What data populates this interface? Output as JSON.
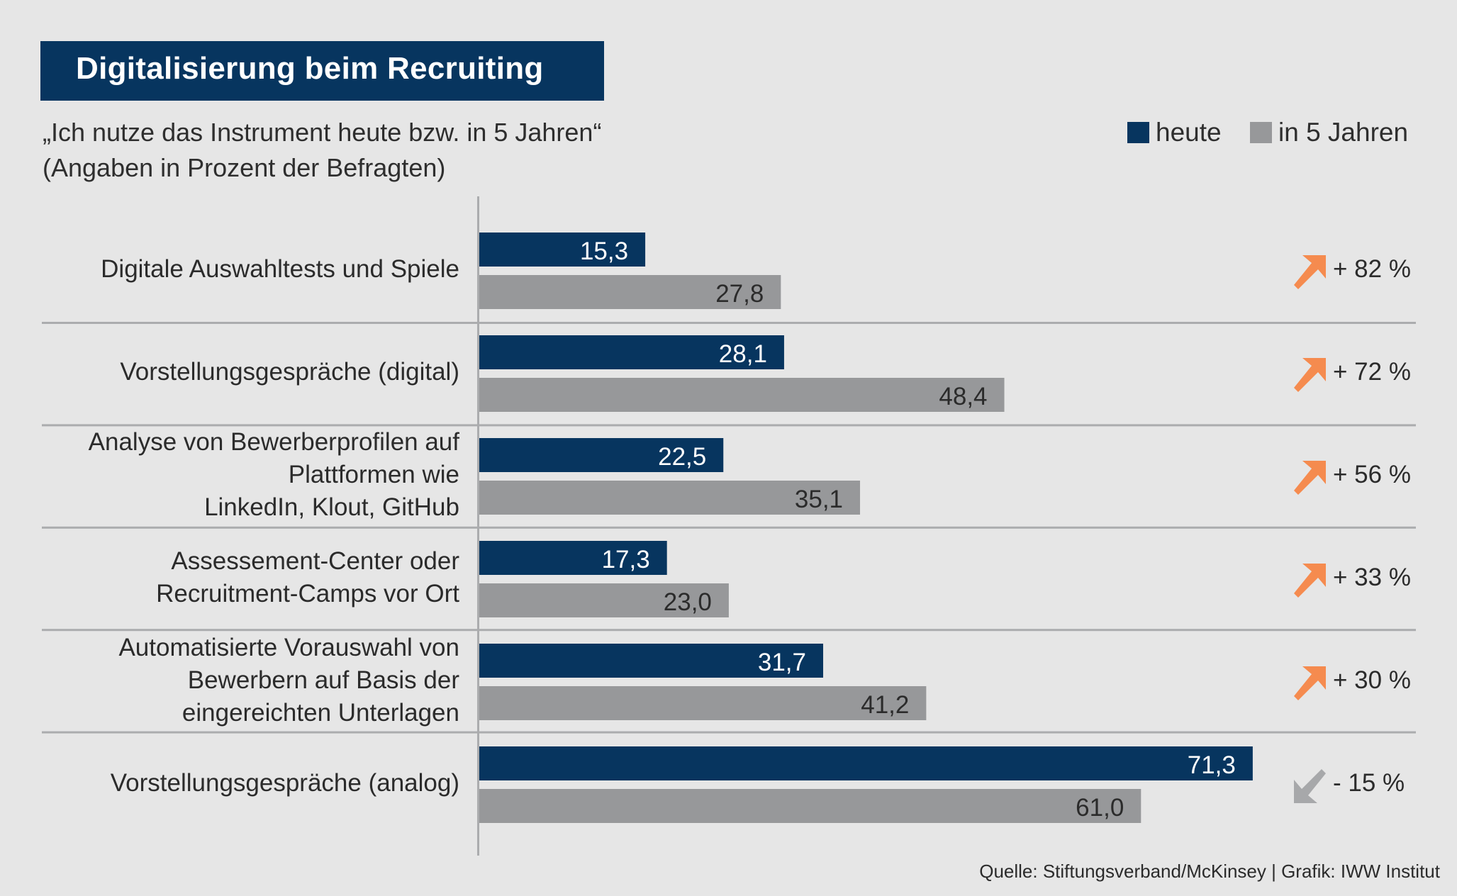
{
  "header": {
    "title": "Digitalisierung beim Recruiting",
    "subtitle_line1": "„Ich nutze das Instrument heute bzw. in 5 Jahren“",
    "subtitle_line2": "(Angaben in Prozent der Befragten)"
  },
  "legend": [
    {
      "label": "heute",
      "color": "#07355F"
    },
    {
      "label": "in 5 Jahren",
      "color": "#97989A"
    }
  ],
  "footer": {
    "source": "Quelle: Stiftungsverband/McKinsey | Grafik: IWW Institut"
  },
  "colors": {
    "heute": "#07355F",
    "in_5_jahren": "#97989A",
    "arrow_up": "#F58B4F",
    "arrow_down": "#A7A8AA",
    "divider": "#ABACAE",
    "background": "#E6E6E6"
  },
  "chart_data": {
    "type": "bar",
    "orientation": "horizontal",
    "title": "Digitalisierung beim Recruiting",
    "subtitle": "„Ich nutze das Instrument heute bzw. in 5 Jahren“ (Angaben in Prozent der Befragten)",
    "xlabel": "",
    "ylabel": "",
    "xlim": [
      0,
      100
    ],
    "grid": false,
    "legend_position": "top-right",
    "categories": [
      [
        "Digitale Auswahltests und Spiele"
      ],
      [
        "Vorstellungsgespräche (digital)"
      ],
      [
        "Analyse von Bewerberprofilen auf",
        "Plattformen wie",
        "LinkedIn, Klout, GitHub"
      ],
      [
        "Assessement-Center oder",
        "Recruitment-Camps vor Ort"
      ],
      [
        "Automatisierte Vorauswahl von",
        "Bewerbern auf Basis der",
        "eingereichten Unterlagen"
      ],
      [
        "Vorstellungsgespräche (analog)"
      ]
    ],
    "series": [
      {
        "name": "heute",
        "values": [
          15.3,
          28.1,
          22.5,
          17.3,
          31.7,
          71.3
        ],
        "labels": [
          "15,3",
          "28,1",
          "22,5",
          "17,3",
          "31,7",
          "71,3"
        ]
      },
      {
        "name": "in 5 Jahren",
        "values": [
          27.8,
          48.4,
          35.1,
          23.0,
          41.2,
          61.0
        ],
        "labels": [
          "27,8",
          "48,4",
          "35,1",
          "23,0",
          "41,2",
          "61,0"
        ]
      }
    ],
    "changes": [
      {
        "value": 82,
        "label": "+ 82 %",
        "direction": "up"
      },
      {
        "value": 72,
        "label": "+ 72 %",
        "direction": "up"
      },
      {
        "value": 56,
        "label": "+ 56 %",
        "direction": "up"
      },
      {
        "value": 33,
        "label": "+ 33 %",
        "direction": "up"
      },
      {
        "value": 30,
        "label": "+ 30 %",
        "direction": "up"
      },
      {
        "value": -15,
        "label": "- 15 %",
        "direction": "down"
      }
    ]
  }
}
